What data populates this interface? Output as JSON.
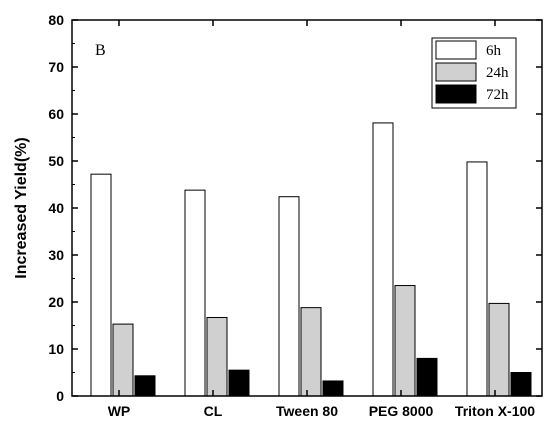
{
  "chart_data": {
    "type": "bar",
    "panel_label": "B",
    "ylabel": "Increased Yield(%)",
    "xlabel": "",
    "ylim": [
      0,
      80
    ],
    "yticks": [
      0,
      10,
      20,
      30,
      40,
      50,
      60,
      70,
      80
    ],
    "yticklabels": [
      "0",
      "10",
      "20",
      "30",
      "40",
      "50",
      "60",
      "70",
      "80"
    ],
    "categories": [
      "WP",
      "CL",
      "Tween 80",
      "PEG 8000",
      "Triton X-100"
    ],
    "series": [
      {
        "name": "6h",
        "values": [
          47.2,
          43.8,
          42.4,
          58.1,
          49.8
        ],
        "color": "#ffffff"
      },
      {
        "name": "24h",
        "values": [
          15.3,
          16.7,
          18.8,
          23.5,
          19.7
        ],
        "color": "#d0d0d0"
      },
      {
        "name": "72h",
        "values": [
          4.3,
          5.5,
          3.2,
          8.0,
          5.0
        ],
        "color": "#000000"
      }
    ],
    "legend_position": "top-right",
    "grid": false
  }
}
